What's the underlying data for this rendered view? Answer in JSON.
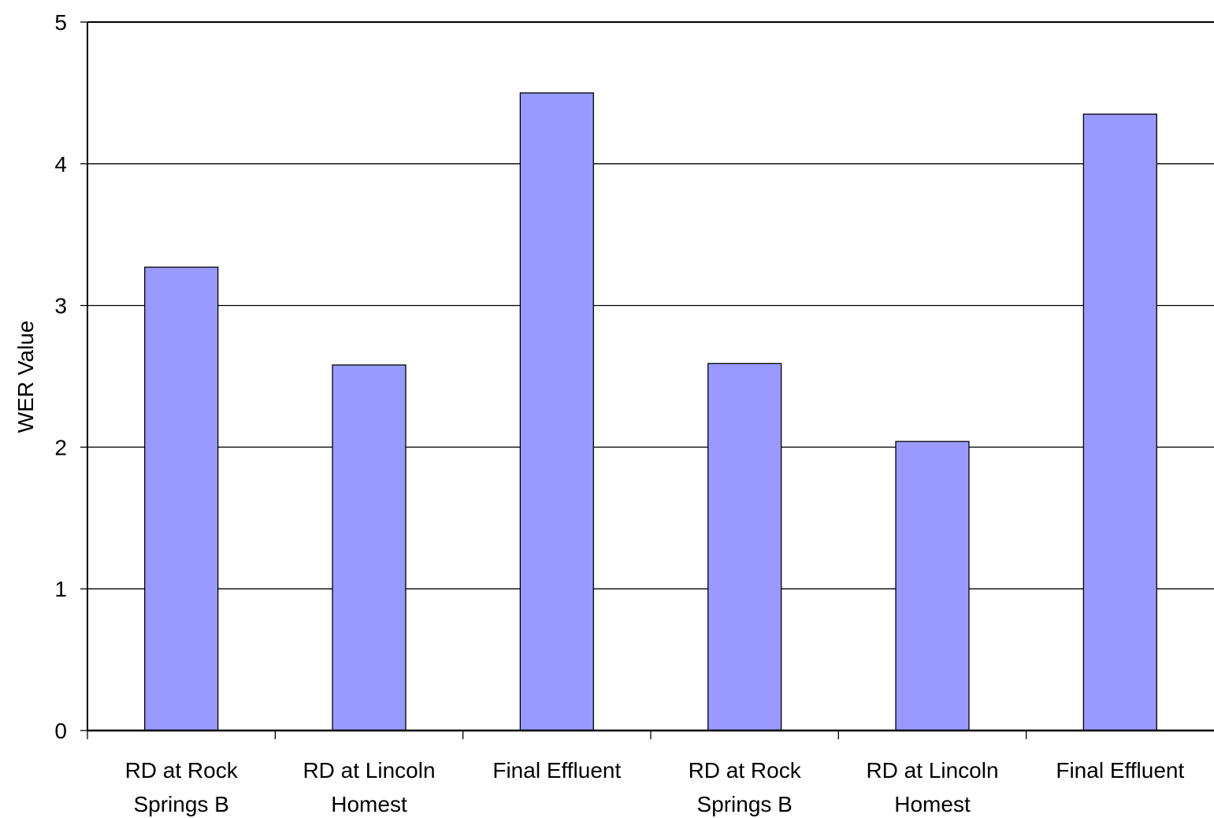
{
  "chart_data": {
    "type": "bar",
    "categories": [
      [
        "RD at Rock",
        "Springs B"
      ],
      [
        "RD at Lincoln",
        "Homest"
      ],
      [
        "Final Effluent"
      ],
      [
        "RD at Rock",
        "Springs B"
      ],
      [
        "RD at Lincoln",
        "Homest"
      ],
      [
        "Final Effluent"
      ]
    ],
    "values": [
      3.27,
      2.58,
      4.5,
      2.59,
      2.04,
      4.35
    ],
    "title": "",
    "xlabel": "",
    "ylabel": "WER Value",
    "ylim": [
      0,
      5
    ],
    "yticks": [
      0,
      1,
      2,
      3,
      4,
      5
    ],
    "grid": true,
    "bar_color": "#9999ff",
    "bar_edge_color": "#000000"
  }
}
